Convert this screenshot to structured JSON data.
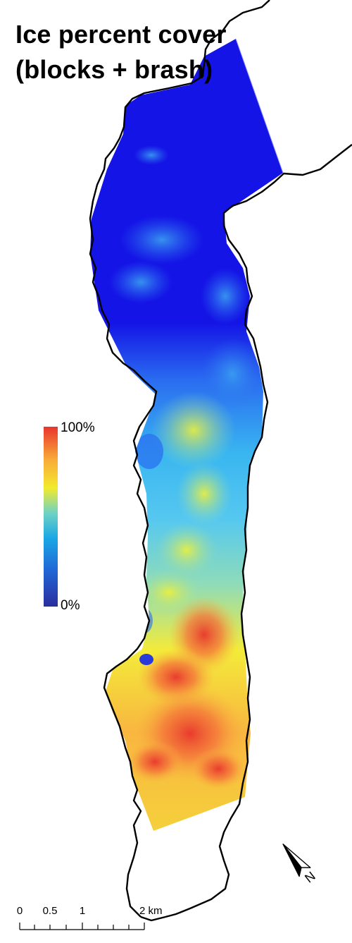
{
  "title": {
    "line1": "Ice percent cover",
    "line2": "(blocks + brash)"
  },
  "legend": {
    "max_label": "100%",
    "min_label": "0%",
    "color_stops": [
      "#2b2d9e",
      "#2166d6",
      "#1aa8e6",
      "#6fd2c4",
      "#f2ea2c",
      "#f9a93a",
      "#e8352d"
    ]
  },
  "scale_bar": {
    "labels": [
      "0",
      "0.5",
      "1",
      "2 km"
    ]
  },
  "north_arrow": {
    "icon": "north-arrow-icon",
    "label": "N"
  },
  "colors": {
    "land_outline": "#000000",
    "low_ice": "#1414e6",
    "high_ice": "#e8352d"
  }
}
